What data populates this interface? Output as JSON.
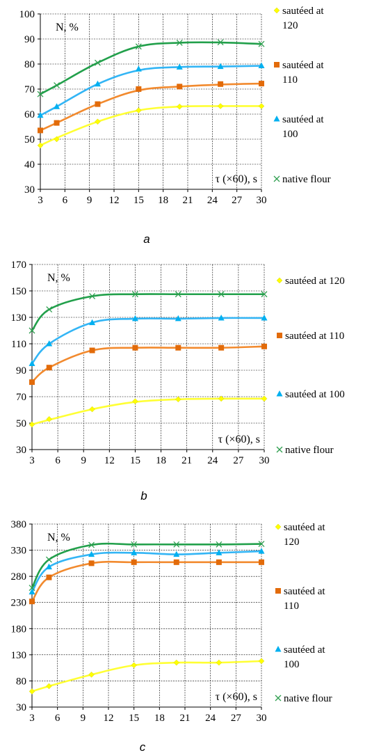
{
  "chart_data": [
    {
      "type": "line",
      "panel_label": "a",
      "x": [
        3,
        5,
        10,
        15,
        20,
        25,
        30
      ],
      "xticks": [
        3,
        6,
        9,
        12,
        15,
        18,
        21,
        24,
        27,
        30
      ],
      "xlim": [
        3,
        30
      ],
      "yticks": [
        30,
        40,
        50,
        60,
        70,
        80,
        90,
        100
      ],
      "ylim": [
        30,
        100
      ],
      "grid": true,
      "ylabel_inside": "N, %",
      "xlabel_inside": "τ (×60), s",
      "legend_placement": "right",
      "series": [
        {
          "name": "sautéed at 120",
          "legend_lines": [
            "sautéed at",
            "120"
          ],
          "color": "#FFFF00",
          "line_color": "#FFFF33",
          "marker": "diamond",
          "values": [
            47.5,
            50,
            57,
            61.5,
            63,
            63.2,
            63.2
          ],
          "curve": [
            [
              3,
              47.5
            ],
            [
              5,
              50.5
            ],
            [
              10,
              57
            ],
            [
              15,
              61.5
            ],
            [
              20,
              63
            ],
            [
              25,
              63.2
            ],
            [
              30,
              63.2
            ]
          ]
        },
        {
          "name": "sautéed at 110",
          "legend_lines": [
            "sautéed at",
            "110"
          ],
          "color": "#E26B0A",
          "line_color": "#F28A2E",
          "marker": "square",
          "values": [
            53.5,
            56.5,
            64,
            70,
            71,
            72,
            72.2
          ],
          "curve": [
            [
              3,
              53.5
            ],
            [
              5,
              56.5
            ],
            [
              10,
              64
            ],
            [
              15,
              69.5
            ],
            [
              20,
              71
            ],
            [
              25,
              71.8
            ],
            [
              30,
              72.2
            ]
          ]
        },
        {
          "name": "sautéed at 100",
          "legend_lines": [
            "sautéed at",
            "100"
          ],
          "color": "#00B0F0",
          "line_color": "#33B5F5",
          "marker": "triangle",
          "values": [
            59.5,
            63,
            72,
            78,
            78.8,
            79,
            79.3
          ],
          "curve": [
            [
              3,
              59.5
            ],
            [
              5,
              63
            ],
            [
              10,
              72
            ],
            [
              15,
              77.5
            ],
            [
              20,
              78.8
            ],
            [
              25,
              79
            ],
            [
              30,
              79.3
            ]
          ]
        },
        {
          "name": "native flour",
          "legend_lines": [
            "native flour"
          ],
          "color": "#2E9E4F",
          "line_color": "#22A04B",
          "marker": "x",
          "values": [
            68,
            71.5,
            80.5,
            87,
            88.5,
            88.7,
            88
          ],
          "curve": [
            [
              3,
              68
            ],
            [
              5,
              71.5
            ],
            [
              10,
              80.5
            ],
            [
              15,
              87
            ],
            [
              20,
              88.5
            ],
            [
              25,
              88.6
            ],
            [
              30,
              88
            ]
          ]
        }
      ]
    },
    {
      "type": "line",
      "panel_label": "b",
      "x": [
        3,
        5,
        10,
        15,
        20,
        25,
        30
      ],
      "xticks": [
        3,
        6,
        9,
        12,
        15,
        18,
        21,
        24,
        27,
        30
      ],
      "xlim": [
        3,
        30
      ],
      "yticks": [
        30,
        50,
        70,
        90,
        110,
        130,
        150,
        170
      ],
      "ylim": [
        30,
        170
      ],
      "grid": true,
      "ylabel_inside": "N, %",
      "xlabel_inside": "τ (×60), s",
      "legend_placement": "right",
      "series": [
        {
          "name": "sautéed at 120",
          "legend_lines": [
            "sautéed at 120"
          ],
          "color": "#FFFF00",
          "line_color": "#FFFF33",
          "marker": "diamond",
          "values": [
            49,
            53,
            60.5,
            66.5,
            68,
            68.5,
            68.5
          ],
          "curve": [
            [
              3,
              49
            ],
            [
              5,
              52.5
            ],
            [
              10,
              60.5
            ],
            [
              15,
              66
            ],
            [
              20,
              68
            ],
            [
              25,
              68.5
            ],
            [
              30,
              68.5
            ]
          ]
        },
        {
          "name": "sautéed at 110",
          "legend_lines": [
            "sautéed at 110"
          ],
          "color": "#E26B0A",
          "line_color": "#F28A2E",
          "marker": "square",
          "values": [
            81,
            92,
            105,
            107,
            107,
            107,
            108
          ],
          "curve": [
            [
              3,
              81
            ],
            [
              5,
              92
            ],
            [
              10,
              105
            ],
            [
              15,
              107
            ],
            [
              20,
              107
            ],
            [
              25,
              107
            ],
            [
              30,
              108
            ]
          ]
        },
        {
          "name": "sautéed at 100",
          "legend_lines": [
            "sautéed at 100"
          ],
          "color": "#00B0F0",
          "line_color": "#33B5F5",
          "marker": "triangle",
          "values": [
            95,
            110,
            126,
            129,
            129,
            129.5,
            129.5
          ],
          "curve": [
            [
              3,
              95
            ],
            [
              5,
              110
            ],
            [
              10,
              126
            ],
            [
              15,
              129
            ],
            [
              20,
              129
            ],
            [
              25,
              129.5
            ],
            [
              30,
              129.5
            ]
          ]
        },
        {
          "name": "native flour",
          "legend_lines": [
            "native flour"
          ],
          "color": "#2E9E4F",
          "line_color": "#22A04B",
          "marker": "x",
          "values": [
            120,
            136,
            146,
            147.5,
            147.5,
            147.5,
            147.5
          ],
          "curve": [
            [
              3,
              120
            ],
            [
              5,
              136
            ],
            [
              10,
              146
            ],
            [
              15,
              147.5
            ],
            [
              20,
              147.5
            ],
            [
              25,
              147.5
            ],
            [
              30,
              147.5
            ]
          ]
        }
      ]
    },
    {
      "type": "line",
      "panel_label": "c",
      "x": [
        3,
        5,
        10,
        15,
        20,
        25,
        30
      ],
      "xticks": [
        3,
        6,
        9,
        12,
        15,
        18,
        21,
        24,
        27,
        30
      ],
      "xlim": [
        3,
        30
      ],
      "yticks": [
        30,
        80,
        130,
        180,
        230,
        280,
        330,
        380
      ],
      "ylim": [
        30,
        380
      ],
      "grid": true,
      "ylabel_inside": "N, %",
      "xlabel_inside": "τ (×60), s",
      "legend_placement": "right",
      "series": [
        {
          "name": "sautéed at 120",
          "legend_lines": [
            "sautéed at",
            "120"
          ],
          "color": "#FFFF00",
          "line_color": "#FFFF33",
          "marker": "diamond",
          "values": [
            60,
            70,
            92,
            110,
            115,
            115,
            118
          ],
          "curve": [
            [
              3,
              60
            ],
            [
              5,
              70
            ],
            [
              10,
              92
            ],
            [
              15,
              110
            ],
            [
              20,
              115
            ],
            [
              25,
              115
            ],
            [
              30,
              118
            ]
          ]
        },
        {
          "name": "sautéed at 110",
          "legend_lines": [
            "sautéed at",
            "110"
          ],
          "color": "#E26B0A",
          "line_color": "#F28A2E",
          "marker": "square",
          "values": [
            232,
            278,
            305,
            307,
            307,
            307,
            307
          ],
          "curve": [
            [
              3,
              232
            ],
            [
              5,
              278
            ],
            [
              10,
              305
            ],
            [
              15,
              307
            ],
            [
              20,
              307
            ],
            [
              25,
              307
            ],
            [
              30,
              307
            ]
          ]
        },
        {
          "name": "sautéed at 100",
          "legend_lines": [
            "sautéed at",
            "100"
          ],
          "color": "#00B0F0",
          "line_color": "#33B5F5",
          "marker": "triangle",
          "values": [
            250,
            298,
            322,
            325,
            322,
            325,
            328
          ],
          "curve": [
            [
              3,
              250
            ],
            [
              5,
              298
            ],
            [
              10,
              322
            ],
            [
              15,
              325
            ],
            [
              20,
              322
            ],
            [
              25,
              325
            ],
            [
              30,
              328
            ]
          ]
        },
        {
          "name": "native flour",
          "legend_lines": [
            "native flour"
          ],
          "color": "#2E9E4F",
          "line_color": "#22A04B",
          "marker": "x",
          "values": [
            258,
            312,
            340,
            341,
            341,
            341,
            342
          ],
          "curve": [
            [
              3,
              258
            ],
            [
              5,
              312
            ],
            [
              10,
              340
            ],
            [
              15,
              341
            ],
            [
              20,
              341
            ],
            [
              25,
              341
            ],
            [
              30,
              342
            ]
          ]
        }
      ]
    }
  ]
}
